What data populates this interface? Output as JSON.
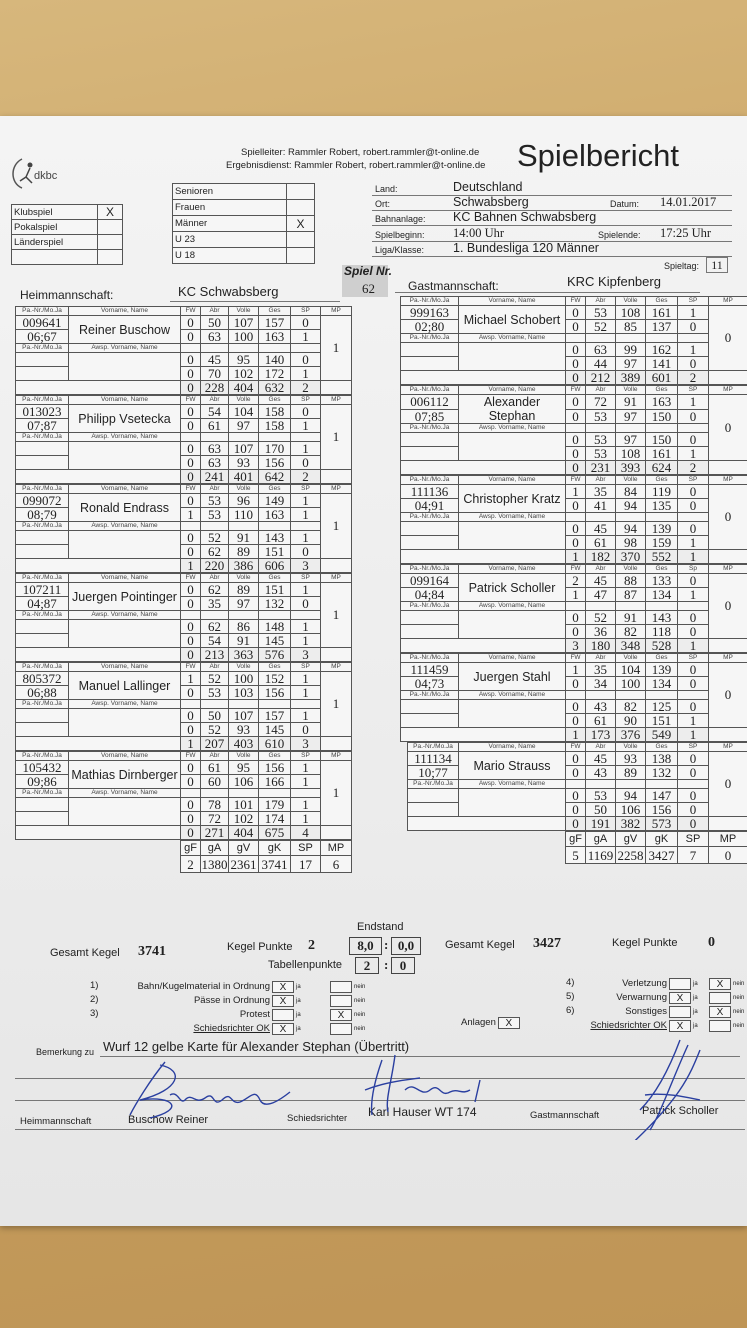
{
  "header": {
    "spielleiter": "Spielleiter: Rammler Robert, robert.rammler@t-online.de",
    "ergebnisdienst": "Ergebnisdienst: Rammler Robert, robert.rammler@t-online.de",
    "title": "Spielbericht",
    "logo_text": "dkbc"
  },
  "game_type": [
    {
      "label": "Klubspiel",
      "mark": "X"
    },
    {
      "label": "Pokalspiel",
      "mark": ""
    },
    {
      "label": "Länderspiel",
      "mark": ""
    },
    {
      "label": "",
      "mark": ""
    }
  ],
  "category": [
    {
      "label": "Senioren",
      "mark": ""
    },
    {
      "label": "Frauen",
      "mark": ""
    },
    {
      "label": "Männer",
      "mark": "X"
    },
    {
      "label": "U 23",
      "mark": ""
    },
    {
      "label": "U 18",
      "mark": ""
    }
  ],
  "info": {
    "land_label": "Land:",
    "land": "Deutschland",
    "ort_label": "Ort:",
    "ort": "Schwabsberg",
    "datum_label": "Datum:",
    "datum": "14.01.2017",
    "bahn_label": "Bahnanlage:",
    "bahn": "KC Bahnen Schwabsberg",
    "beginn_label": "Spielbeginn:",
    "beginn": "14:00 Uhr",
    "ende_label": "Spielende:",
    "ende": "17:25 Uhr",
    "liga_label": "Liga/Klasse:",
    "liga": "1. Bundesliga 120 Männer",
    "spieltag_label": "Spieltag:",
    "spieltag": "11",
    "spielnr_label": "Spiel Nr.",
    "spielnr": "62"
  },
  "labels": {
    "panr": "Pa.-Nr./Mo.Ja",
    "name": "Vorname, Name",
    "awsp": "Awsp. Vorname, Name",
    "fw": "FW",
    "abr": "Abr",
    "volle": "Volle",
    "ges": "Ges",
    "sp": "SP",
    "mp": "MP",
    "gF": "gF",
    "gA": "gA",
    "gV": "gV",
    "gK": "gK"
  },
  "home": {
    "label": "Heimmannschaft:",
    "team": "KC Schwabsberg",
    "players": [
      {
        "id": "009641",
        "birth": "06;67",
        "name": "Reiner Buschow",
        "sp_label": "SP",
        "mp": "1",
        "rows": [
          [
            "0",
            "50",
            "107",
            "157",
            "0"
          ],
          [
            "0",
            "63",
            "100",
            "163",
            "1"
          ],
          [
            "0",
            "45",
            "95",
            "140",
            "0"
          ],
          [
            "0",
            "70",
            "102",
            "172",
            "1"
          ]
        ],
        "total": [
          "0",
          "228",
          "404",
          "632",
          "2"
        ]
      },
      {
        "id": "013023",
        "birth": "07;87",
        "name": "Philipp Vsetecka",
        "sp_label": "SP",
        "mp": "1",
        "rows": [
          [
            "0",
            "54",
            "104",
            "158",
            "0"
          ],
          [
            "0",
            "61",
            "97",
            "158",
            "1"
          ],
          [
            "0",
            "63",
            "107",
            "170",
            "1"
          ],
          [
            "0",
            "63",
            "93",
            "156",
            "0"
          ]
        ],
        "total": [
          "0",
          "241",
          "401",
          "642",
          "2"
        ]
      },
      {
        "id": "099072",
        "birth": "08;79",
        "name": "Ronald Endrass",
        "sp_label": "SP",
        "mp": "1",
        "rows": [
          [
            "0",
            "53",
            "96",
            "149",
            "1"
          ],
          [
            "1",
            "53",
            "110",
            "163",
            "1"
          ],
          [
            "0",
            "52",
            "91",
            "143",
            "1"
          ],
          [
            "0",
            "62",
            "89",
            "151",
            "0"
          ]
        ],
        "total": [
          "1",
          "220",
          "386",
          "606",
          "3"
        ]
      },
      {
        "id": "107211",
        "birth": "04;87",
        "name": "Juergen Pointinger",
        "sp_label": "SP",
        "mp": "1",
        "rows": [
          [
            "0",
            "62",
            "89",
            "151",
            "1"
          ],
          [
            "0",
            "35",
            "97",
            "132",
            "0"
          ],
          [
            "0",
            "62",
            "86",
            "148",
            "1"
          ],
          [
            "0",
            "54",
            "91",
            "145",
            "1"
          ]
        ],
        "total": [
          "0",
          "213",
          "363",
          "576",
          "3"
        ]
      },
      {
        "id": "805372",
        "birth": "06;88",
        "name": "Manuel Lallinger",
        "sp_label": "SP",
        "mp": "1",
        "rows": [
          [
            "1",
            "52",
            "100",
            "152",
            "1"
          ],
          [
            "0",
            "53",
            "103",
            "156",
            "1"
          ],
          [
            "0",
            "50",
            "107",
            "157",
            "1"
          ],
          [
            "0",
            "52",
            "93",
            "145",
            "0"
          ]
        ],
        "total": [
          "1",
          "207",
          "403",
          "610",
          "3"
        ]
      },
      {
        "id": "105432",
        "birth": "09;86",
        "name": "Mathias Dirnberger",
        "sp_label": "SP",
        "mp": "1",
        "rows": [
          [
            "0",
            "61",
            "95",
            "156",
            "1"
          ],
          [
            "0",
            "60",
            "106",
            "166",
            "1"
          ],
          [
            "0",
            "78",
            "101",
            "179",
            "1"
          ],
          [
            "0",
            "72",
            "102",
            "174",
            "1"
          ]
        ],
        "total": [
          "0",
          "271",
          "404",
          "675",
          "4"
        ]
      }
    ],
    "summary": [
      "2",
      "1380",
      "2361",
      "3741",
      "17",
      "6"
    ],
    "gesamt_label": "Gesamt Kegel",
    "gesamt": "3741",
    "kp_label": "Kegel Punkte",
    "kp": "2"
  },
  "guest": {
    "label": "Gastmannschaft:",
    "team": "KRC Kipfenberg",
    "players": [
      {
        "id": "999163",
        "birth": "02;80",
        "name": "Michael Schobert",
        "sp_label": "SP",
        "mp": "0",
        "rows": [
          [
            "0",
            "53",
            "108",
            "161",
            "1"
          ],
          [
            "0",
            "52",
            "85",
            "137",
            "0"
          ],
          [
            "0",
            "63",
            "99",
            "162",
            "1"
          ],
          [
            "0",
            "44",
            "97",
            "141",
            "0"
          ]
        ],
        "total": [
          "0",
          "212",
          "389",
          "601",
          "2"
        ]
      },
      {
        "id": "006112",
        "birth": "07;85",
        "name": "Alexander Stephan",
        "sp_label": "SP",
        "mp": "0",
        "rows": [
          [
            "0",
            "72",
            "91",
            "163",
            "1"
          ],
          [
            "0",
            "53",
            "97",
            "150",
            "0"
          ],
          [
            "0",
            "53",
            "97",
            "150",
            "0"
          ],
          [
            "0",
            "53",
            "108",
            "161",
            "1"
          ]
        ],
        "total": [
          "0",
          "231",
          "393",
          "624",
          "2"
        ]
      },
      {
        "id": "111136",
        "birth": "04;91",
        "name": "Christopher Kratz",
        "sp_label": "SP",
        "mp": "0",
        "rows": [
          [
            "1",
            "35",
            "84",
            "119",
            "0"
          ],
          [
            "0",
            "41",
            "94",
            "135",
            "0"
          ],
          [
            "0",
            "45",
            "94",
            "139",
            "0"
          ],
          [
            "0",
            "61",
            "98",
            "159",
            "1"
          ]
        ],
        "total": [
          "1",
          "182",
          "370",
          "552",
          "1"
        ]
      },
      {
        "id": "099164",
        "birth": "04;84",
        "name": "Patrick Scholler",
        "sp_label": "Sp",
        "mp": "0",
        "rows": [
          [
            "2",
            "45",
            "88",
            "133",
            "0"
          ],
          [
            "1",
            "47",
            "87",
            "134",
            "1"
          ],
          [
            "0",
            "52",
            "91",
            "143",
            "0"
          ],
          [
            "0",
            "36",
            "82",
            "118",
            "0"
          ]
        ],
        "total": [
          "3",
          "180",
          "348",
          "528",
          "1"
        ]
      },
      {
        "id": "111459",
        "birth": "04;73",
        "name": "Juergen Stahl",
        "sp_label": "SP",
        "mp": "0",
        "rows": [
          [
            "1",
            "35",
            "104",
            "139",
            "0"
          ],
          [
            "0",
            "34",
            "100",
            "134",
            "0"
          ],
          [
            "0",
            "43",
            "82",
            "125",
            "0"
          ],
          [
            "0",
            "61",
            "90",
            "151",
            "1"
          ]
        ],
        "total": [
          "1",
          "173",
          "376",
          "549",
          "1"
        ]
      },
      {
        "id": "111134",
        "birth": "10;77",
        "name": "Mario Strauss",
        "sp_label": "SP",
        "mp": "0",
        "rows": [
          [
            "0",
            "45",
            "93",
            "138",
            "0"
          ],
          [
            "0",
            "43",
            "89",
            "132",
            "0"
          ],
          [
            "0",
            "53",
            "94",
            "147",
            "0"
          ],
          [
            "0",
            "50",
            "106",
            "156",
            "0"
          ]
        ],
        "total": [
          "0",
          "191",
          "382",
          "573",
          "0"
        ]
      }
    ],
    "summary": [
      "5",
      "1169",
      "2258",
      "3427",
      "7",
      "0"
    ],
    "gesamt_label": "Gesamt Kegel",
    "gesamt": "3427",
    "kp_label": "Kegel Punkte",
    "kp": "0"
  },
  "result": {
    "endstand_label": "Endstand",
    "kegel_home": "8,0",
    "kegel_guest": "0,0",
    "colon": ":",
    "tabellen_label": "Tabellenpunkte",
    "tab_home": "2",
    "tab_guest": "0"
  },
  "checks_left": [
    {
      "num": "1)",
      "label": "Bahn/Kugelmaterial in Ordnung",
      "ja": "X",
      "nein": ""
    },
    {
      "num": "2)",
      "label": "Pässe in Ordnung",
      "ja": "X",
      "nein": ""
    },
    {
      "num": "3)",
      "label": "Protest",
      "ja": "",
      "nein": "X"
    },
    {
      "num": "",
      "label": "Schiedsrichter OK",
      "ja": "X",
      "nein": ""
    }
  ],
  "checks_right": [
    {
      "num": "4)",
      "label": "Verletzung",
      "ja": "",
      "nein": "X"
    },
    {
      "num": "5)",
      "label": "Verwarnung",
      "ja": "X",
      "nein": ""
    },
    {
      "num": "6)",
      "label": "Sonstiges",
      "ja": "",
      "nein": "X"
    },
    {
      "num": "",
      "label": "Schiedsrichter OK",
      "ja": "X",
      "nein": ""
    }
  ],
  "check_words": {
    "ja": "ja",
    "nein": "nein"
  },
  "anlagen": {
    "label": "Anlagen",
    "mark": "X"
  },
  "remark": {
    "label": "Bemerkung zu",
    "text": "Wurf 12 gelbe Karte für Alexander Stephan (Übertritt)"
  },
  "signatures": {
    "home_label": "Heimmannschaft",
    "home_name": "Buschow Reiner",
    "ref_label": "Schiedsrichter",
    "ref_name": "Karl Hauser WT 174",
    "guest_label": "Gastmannschaft",
    "guest_name": "Patrick Scholler"
  },
  "colors": {
    "wood": "#c9a262",
    "paper": "#f0f0f0",
    "ink": "#2a3fa0"
  }
}
